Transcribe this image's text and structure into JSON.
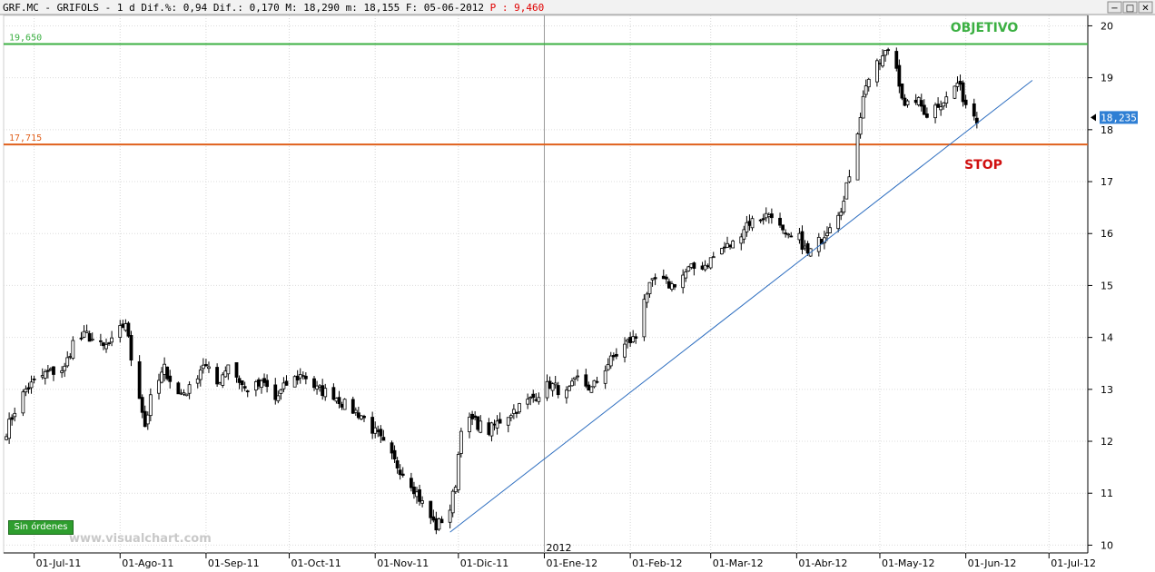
{
  "header": {
    "symbol": "GRF.MC",
    "name": "GRIFOLS",
    "period": "1 d",
    "dif_pct_label": "Dif.%:",
    "dif_pct": "0,94",
    "dif_label": "Dif.:",
    "dif": "0,170",
    "max_label": "M:",
    "max": "18,290",
    "min_label": "m:",
    "min": "18,155",
    "date_label": "F:",
    "date": "05-06-2012",
    "p_label": "P :",
    "p_value": "9,460"
  },
  "window_buttons": {
    "minimize": "−",
    "maximize": "□",
    "close": "✕"
  },
  "badge": "Sin órdenes",
  "watermark": "www.visualchart.com",
  "annotations": {
    "target_text": "OBJETIVO",
    "stop_text": "STOP"
  },
  "colors": {
    "target": "#3cb043",
    "stop": "#e0601c",
    "trend": "#2f6fc0",
    "price_label_bg": "#2f7fd4",
    "stop_text": "#d01010",
    "p_value": "#e00000"
  },
  "chart_data": {
    "type": "candlestick",
    "title": "",
    "xlabel": "",
    "ylabel": "",
    "ylim": [
      9.85,
      20.2
    ],
    "yticks": [
      10,
      11,
      12,
      13,
      14,
      15,
      16,
      17,
      18,
      19,
      20
    ],
    "xlim": [
      "2011-06-20",
      "2012-07-15"
    ],
    "xticks": [
      {
        "date": "2011-07-01",
        "label": "01-Jul-11"
      },
      {
        "date": "2011-08-01",
        "label": "01-Ago-11"
      },
      {
        "date": "2011-09-01",
        "label": "01-Sep-11"
      },
      {
        "date": "2011-10-01",
        "label": "01-Oct-11"
      },
      {
        "date": "2011-11-01",
        "label": "01-Nov-11"
      },
      {
        "date": "2011-12-01",
        "label": "01-Dic-11"
      },
      {
        "date": "2012-01-01",
        "label": "01-Ene-12"
      },
      {
        "date": "2012-02-01",
        "label": "01-Feb-12"
      },
      {
        "date": "2012-03-01",
        "label": "01-Mar-12"
      },
      {
        "date": "2012-04-01",
        "label": "01-Abr-12"
      },
      {
        "date": "2012-05-01",
        "label": "01-May-12"
      },
      {
        "date": "2012-06-01",
        "label": "01-Jun-12"
      },
      {
        "date": "2012-07-01",
        "label": "01-Jul-12"
      }
    ],
    "year_marker": {
      "date": "2012-01-01",
      "label": "2012"
    },
    "last_price": {
      "value": 18.235,
      "label": "18,235"
    },
    "hlines": [
      {
        "name": "target",
        "value": 19.65,
        "label": "19,650"
      },
      {
        "name": "stop",
        "value": 17.715,
        "label": "17,715"
      }
    ],
    "trendline": {
      "from": {
        "date": "2011-11-28",
        "value": 10.25
      },
      "to": {
        "date": "2012-06-25",
        "value": 18.95
      }
    },
    "close_path": [
      [
        "2011-06-21",
        12.2
      ],
      [
        "2011-06-24",
        12.6
      ],
      [
        "2011-06-28",
        13.0
      ],
      [
        "2011-07-05",
        13.3
      ],
      [
        "2011-07-12",
        13.4
      ],
      [
        "2011-07-15",
        13.9
      ],
      [
        "2011-07-20",
        14.05
      ],
      [
        "2011-07-26",
        13.8
      ],
      [
        "2011-07-29",
        13.9
      ],
      [
        "2011-08-03",
        14.3
      ],
      [
        "2011-08-05",
        13.6
      ],
      [
        "2011-08-08",
        12.9
      ],
      [
        "2011-08-10",
        12.3
      ],
      [
        "2011-08-12",
        12.8
      ],
      [
        "2011-08-17",
        13.4
      ],
      [
        "2011-08-22",
        12.9
      ],
      [
        "2011-08-26",
        13.0
      ],
      [
        "2011-08-31",
        13.5
      ],
      [
        "2011-09-05",
        13.1
      ],
      [
        "2011-09-09",
        13.5
      ],
      [
        "2011-09-15",
        13.0
      ],
      [
        "2011-09-22",
        13.1
      ],
      [
        "2011-09-26",
        12.8
      ],
      [
        "2011-09-30",
        13.1
      ],
      [
        "2011-10-06",
        13.3
      ],
      [
        "2011-10-11",
        13.0
      ],
      [
        "2011-10-17",
        12.9
      ],
      [
        "2011-10-21",
        12.7
      ],
      [
        "2011-10-27",
        12.5
      ],
      [
        "2011-11-02",
        12.1
      ],
      [
        "2011-11-08",
        11.6
      ],
      [
        "2011-11-14",
        11.2
      ],
      [
        "2011-11-18",
        10.8
      ],
      [
        "2011-11-23",
        10.35
      ],
      [
        "2011-11-28",
        10.7
      ],
      [
        "2011-11-30",
        11.2
      ],
      [
        "2011-12-02",
        12.3
      ],
      [
        "2011-12-06",
        12.4
      ],
      [
        "2011-12-12",
        12.2
      ],
      [
        "2011-12-16",
        12.4
      ],
      [
        "2011-12-21",
        12.6
      ],
      [
        "2011-12-27",
        12.8
      ],
      [
        "2012-01-03",
        13.1
      ],
      [
        "2012-01-09",
        12.9
      ],
      [
        "2012-01-13",
        13.2
      ],
      [
        "2012-01-18",
        13.0
      ],
      [
        "2012-01-24",
        13.5
      ],
      [
        "2012-01-31",
        13.9
      ],
      [
        "2012-02-03",
        14.0
      ],
      [
        "2012-02-06",
        14.8
      ],
      [
        "2012-02-10",
        15.1
      ],
      [
        "2012-02-16",
        15.0
      ],
      [
        "2012-02-22",
        15.3
      ],
      [
        "2012-02-28",
        15.4
      ],
      [
        "2012-03-05",
        15.7
      ],
      [
        "2012-03-09",
        15.8
      ],
      [
        "2012-03-14",
        16.2
      ],
      [
        "2012-03-19",
        16.3
      ],
      [
        "2012-03-23",
        16.4
      ],
      [
        "2012-03-28",
        15.9
      ],
      [
        "2012-04-02",
        15.9
      ],
      [
        "2012-04-05",
        15.6
      ],
      [
        "2012-04-10",
        15.9
      ],
      [
        "2012-04-13",
        16.2
      ],
      [
        "2012-04-18",
        16.6
      ],
      [
        "2012-04-23",
        18.0
      ],
      [
        "2012-04-26",
        18.9
      ],
      [
        "2012-05-01",
        19.3
      ],
      [
        "2012-05-04",
        19.55
      ],
      [
        "2012-05-07",
        19.2
      ],
      [
        "2012-05-10",
        18.4
      ],
      [
        "2012-05-14",
        18.6
      ],
      [
        "2012-05-18",
        18.3
      ],
      [
        "2012-05-22",
        18.5
      ],
      [
        "2012-05-25",
        18.6
      ],
      [
        "2012-05-29",
        18.9
      ],
      [
        "2012-06-01",
        18.5
      ],
      [
        "2012-06-05",
        18.235
      ]
    ]
  }
}
